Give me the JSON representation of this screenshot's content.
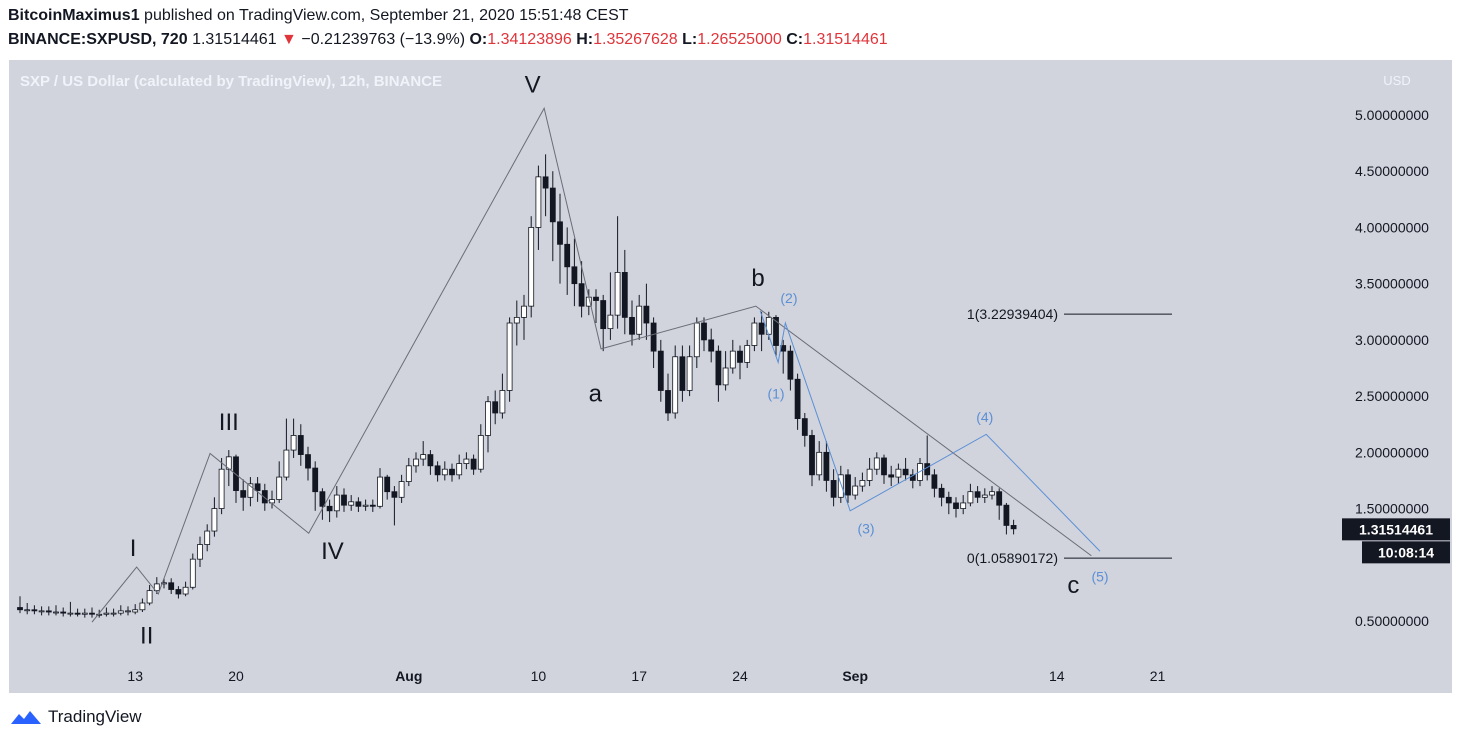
{
  "header": {
    "publisher": "BitcoinMaximus1",
    "published_text": "published on TradingView.com, September 21, 2020 15:51:48 CEST",
    "symbol": "BINANCE:SXPUSD, 720",
    "last": "1.31514461",
    "change_arrow": "▼",
    "change": "−0.21239763 (−13.9%)",
    "o_label": "O:",
    "o": "1.34123896",
    "h_label": "H:",
    "h": "1.35267628",
    "l_label": "L:",
    "l": "1.26525000",
    "c_label": "C:",
    "c": "1.31514461"
  },
  "footer": {
    "brand": "TradingView"
  },
  "chart_data": {
    "type": "candlestick",
    "title": "SXP / US Dollar (calculated by TradingView), 12h, BINANCE",
    "ylabel": "USD",
    "ylim": [
      0.15,
      5.42
    ],
    "y_ticks": [
      "5.00000000",
      "4.50000000",
      "4.00000000",
      "3.50000000",
      "3.00000000",
      "2.50000000",
      "2.00000000",
      "1.50000000",
      "0.50000000"
    ],
    "y_tick_values": [
      5.0,
      4.5,
      4.0,
      3.5,
      3.0,
      2.5,
      2.0,
      1.5,
      0.5
    ],
    "x_ticks": [
      "13",
      "20",
      "Aug",
      "10",
      "17",
      "24",
      "Sep",
      "14",
      "21"
    ],
    "x_tick_index": [
      16,
      30,
      54,
      72,
      86,
      100,
      116,
      144,
      158
    ],
    "last_price_label": "1.31514461",
    "countdown_label": "10:08:14",
    "colors": {
      "up": "#ffffff",
      "down": "#131722",
      "wave": "#6a6d78",
      "subwave": "#5b8fd6",
      "fib": "#131722"
    },
    "candles": [
      [
        0.62,
        0.6,
        0.72,
        0.57
      ],
      [
        0.6,
        0.6,
        0.66,
        0.56
      ],
      [
        0.6,
        0.59,
        0.64,
        0.56
      ],
      [
        0.59,
        0.59,
        0.63,
        0.55
      ],
      [
        0.59,
        0.58,
        0.63,
        0.55
      ],
      [
        0.58,
        0.58,
        0.64,
        0.55
      ],
      [
        0.58,
        0.57,
        0.62,
        0.54
      ],
      [
        0.57,
        0.57,
        0.67,
        0.54
      ],
      [
        0.57,
        0.56,
        0.61,
        0.54
      ],
      [
        0.56,
        0.57,
        0.61,
        0.53
      ],
      [
        0.57,
        0.56,
        0.62,
        0.53
      ],
      [
        0.56,
        0.56,
        0.6,
        0.53
      ],
      [
        0.56,
        0.57,
        0.62,
        0.54
      ],
      [
        0.57,
        0.57,
        0.61,
        0.54
      ],
      [
        0.57,
        0.59,
        0.64,
        0.55
      ],
      [
        0.59,
        0.59,
        0.63,
        0.55
      ],
      [
        0.58,
        0.6,
        0.65,
        0.56
      ],
      [
        0.6,
        0.66,
        0.7,
        0.58
      ],
      [
        0.66,
        0.77,
        0.82,
        0.64
      ],
      [
        0.77,
        0.83,
        0.89,
        0.74
      ],
      [
        0.83,
        0.84,
        0.88,
        0.79
      ],
      [
        0.84,
        0.78,
        0.88,
        0.74
      ],
      [
        0.78,
        0.74,
        0.81,
        0.7
      ],
      [
        0.74,
        0.8,
        0.85,
        0.72
      ],
      [
        0.8,
        1.05,
        1.1,
        0.78
      ],
      [
        1.05,
        1.18,
        1.25,
        0.98
      ],
      [
        1.18,
        1.3,
        1.36,
        1.12
      ],
      [
        1.3,
        1.5,
        1.6,
        1.25
      ],
      [
        1.5,
        1.85,
        1.95,
        1.45
      ],
      [
        1.85,
        1.96,
        2.02,
        1.7
      ],
      [
        1.96,
        1.66,
        1.98,
        1.55
      ],
      [
        1.66,
        1.6,
        1.76,
        1.48
      ],
      [
        1.6,
        1.72,
        1.78,
        1.52
      ],
      [
        1.72,
        1.66,
        1.78,
        1.56
      ],
      [
        1.66,
        1.55,
        1.72,
        1.48
      ],
      [
        1.55,
        1.58,
        1.66,
        1.5
      ],
      [
        1.58,
        1.78,
        1.92,
        1.55
      ],
      [
        1.78,
        2.02,
        2.3,
        1.75
      ],
      [
        2.02,
        2.15,
        2.3,
        1.95
      ],
      [
        2.15,
        1.98,
        2.25,
        1.88
      ],
      [
        1.98,
        1.86,
        2.05,
        1.75
      ],
      [
        1.86,
        1.65,
        1.92,
        1.48
      ],
      [
        1.65,
        1.52,
        1.68,
        1.4
      ],
      [
        1.52,
        1.48,
        1.58,
        1.38
      ],
      [
        1.48,
        1.62,
        1.7,
        1.42
      ],
      [
        1.62,
        1.53,
        1.68,
        1.47
      ],
      [
        1.53,
        1.56,
        1.62,
        1.48
      ],
      [
        1.56,
        1.52,
        1.6,
        1.47
      ],
      [
        1.52,
        1.53,
        1.58,
        1.48
      ],
      [
        1.53,
        1.52,
        1.58,
        1.47
      ],
      [
        1.52,
        1.78,
        1.86,
        1.5
      ],
      [
        1.78,
        1.65,
        1.8,
        1.58
      ],
      [
        1.65,
        1.6,
        1.7,
        1.35
      ],
      [
        1.6,
        1.74,
        1.8,
        1.55
      ],
      [
        1.74,
        1.88,
        1.95,
        1.7
      ],
      [
        1.88,
        1.94,
        2.0,
        1.82
      ],
      [
        1.94,
        1.98,
        2.1,
        1.88
      ],
      [
        1.98,
        1.88,
        2.02,
        1.8
      ],
      [
        1.88,
        1.8,
        1.92,
        1.74
      ],
      [
        1.8,
        1.85,
        1.92,
        1.75
      ],
      [
        1.85,
        1.8,
        1.9,
        1.74
      ],
      [
        1.8,
        1.9,
        1.98,
        1.76
      ],
      [
        1.9,
        1.94,
        2.0,
        1.85
      ],
      [
        1.94,
        1.85,
        1.98,
        1.8
      ],
      [
        1.85,
        2.15,
        2.25,
        1.82
      ],
      [
        2.15,
        2.45,
        2.5,
        2.0
      ],
      [
        2.45,
        2.35,
        2.55,
        2.25
      ],
      [
        2.35,
        2.55,
        2.7,
        2.3
      ],
      [
        2.55,
        3.15,
        3.2,
        2.45
      ],
      [
        3.15,
        3.2,
        3.35,
        2.95
      ],
      [
        3.2,
        3.3,
        3.4,
        3.0
      ],
      [
        3.3,
        4.0,
        4.1,
        3.2
      ],
      [
        4.0,
        4.45,
        4.55,
        3.8
      ],
      [
        4.45,
        4.35,
        4.65,
        4.1
      ],
      [
        4.35,
        4.05,
        4.5,
        3.7
      ],
      [
        4.05,
        3.85,
        4.3,
        3.5
      ],
      [
        3.85,
        3.65,
        4.0,
        3.4
      ],
      [
        3.65,
        3.5,
        3.9,
        3.3
      ],
      [
        3.5,
        3.3,
        3.7,
        3.2
      ],
      [
        3.3,
        3.38,
        3.45,
        3.22
      ],
      [
        3.38,
        3.35,
        3.45,
        3.15
      ],
      [
        3.35,
        3.1,
        3.4,
        2.9
      ],
      [
        3.1,
        3.22,
        3.6,
        3.0
      ],
      [
        3.22,
        3.6,
        4.1,
        3.1
      ],
      [
        3.6,
        3.2,
        3.8,
        3.05
      ],
      [
        3.2,
        3.05,
        3.35,
        2.95
      ],
      [
        3.05,
        3.3,
        3.4,
        3.0
      ],
      [
        3.3,
        3.15,
        3.5,
        3.0
      ],
      [
        3.15,
        2.9,
        3.2,
        2.75
      ],
      [
        2.9,
        2.55,
        3.0,
        2.45
      ],
      [
        2.55,
        2.35,
        2.7,
        2.28
      ],
      [
        2.35,
        2.85,
        2.95,
        2.3
      ],
      [
        2.85,
        2.55,
        2.95,
        2.45
      ],
      [
        2.55,
        2.85,
        2.95,
        2.5
      ],
      [
        2.85,
        3.15,
        3.2,
        2.75
      ],
      [
        3.15,
        3.0,
        3.2,
        2.9
      ],
      [
        3.0,
        2.9,
        3.1,
        2.8
      ],
      [
        2.9,
        2.6,
        2.95,
        2.45
      ],
      [
        2.6,
        2.75,
        2.9,
        2.55
      ],
      [
        2.75,
        2.9,
        3.0,
        2.7
      ],
      [
        2.9,
        2.8,
        2.95,
        2.65
      ],
      [
        2.8,
        2.95,
        3.0,
        2.75
      ],
      [
        2.95,
        3.15,
        3.2,
        2.9
      ],
      [
        3.15,
        3.05,
        3.25,
        2.9
      ],
      [
        3.05,
        3.2,
        3.25,
        3.0
      ],
      [
        3.2,
        2.95,
        3.22,
        2.85
      ],
      [
        2.95,
        2.9,
        3.0,
        2.7
      ],
      [
        2.9,
        2.65,
        2.95,
        2.55
      ],
      [
        2.65,
        2.3,
        2.7,
        2.2
      ],
      [
        2.3,
        2.15,
        2.35,
        2.05
      ],
      [
        2.15,
        1.8,
        2.2,
        1.7
      ],
      [
        1.8,
        2.0,
        2.1,
        1.75
      ],
      [
        2.0,
        1.75,
        2.1,
        1.65
      ],
      [
        1.75,
        1.6,
        1.85,
        1.52
      ],
      [
        1.6,
        1.8,
        1.88,
        1.55
      ],
      [
        1.8,
        1.62,
        1.85,
        1.55
      ],
      [
        1.62,
        1.7,
        1.78,
        1.58
      ],
      [
        1.7,
        1.75,
        1.82,
        1.65
      ],
      [
        1.75,
        1.85,
        1.95,
        1.7
      ],
      [
        1.85,
        1.95,
        2.0,
        1.8
      ],
      [
        1.95,
        1.8,
        1.98,
        1.72
      ],
      [
        1.8,
        1.78,
        1.88,
        1.7
      ],
      [
        1.78,
        1.85,
        1.9,
        1.72
      ],
      [
        1.85,
        1.8,
        1.95,
        1.75
      ],
      [
        1.8,
        1.75,
        1.85,
        1.68
      ],
      [
        1.75,
        1.9,
        1.95,
        1.7
      ],
      [
        1.9,
        1.8,
        2.15,
        1.75
      ],
      [
        1.8,
        1.68,
        1.85,
        1.6
      ],
      [
        1.68,
        1.6,
        1.72,
        1.52
      ],
      [
        1.6,
        1.55,
        1.65,
        1.45
      ],
      [
        1.55,
        1.5,
        1.6,
        1.42
      ],
      [
        1.5,
        1.55,
        1.62,
        1.45
      ],
      [
        1.55,
        1.65,
        1.72,
        1.52
      ],
      [
        1.65,
        1.6,
        1.7,
        1.55
      ],
      [
        1.6,
        1.62,
        1.68,
        1.55
      ],
      [
        1.62,
        1.65,
        1.7,
        1.58
      ],
      [
        1.65,
        1.53,
        1.68,
        1.4
      ],
      [
        1.53,
        1.35,
        1.55,
        1.27
      ],
      [
        1.35,
        1.32,
        1.4,
        1.27
      ]
    ],
    "wave_labels": [
      {
        "text": "I",
        "x": 15.7,
        "y": 1.08,
        "style": "primary"
      },
      {
        "text": "II",
        "x": 17.6,
        "y": 0.3,
        "style": "primary"
      },
      {
        "text": "III",
        "x": 29.0,
        "y": 2.2,
        "style": "primary"
      },
      {
        "text": "IV",
        "x": 43.4,
        "y": 1.05,
        "style": "primary"
      },
      {
        "text": "V",
        "x": 71.2,
        "y": 5.2,
        "style": "primary"
      },
      {
        "text": "a",
        "x": 79.9,
        "y": 2.45,
        "style": "primary"
      },
      {
        "text": "b",
        "x": 102.5,
        "y": 3.48,
        "style": "primary"
      },
      {
        "text": "c",
        "x": 146.3,
        "y": 0.75,
        "style": "primary"
      },
      {
        "text": "(1)",
        "x": 105.0,
        "y": 2.48,
        "style": "sub"
      },
      {
        "text": "(2)",
        "x": 106.8,
        "y": 3.33,
        "style": "sub"
      },
      {
        "text": "(3)",
        "x": 117.5,
        "y": 1.28,
        "style": "sub"
      },
      {
        "text": "(4)",
        "x": 134.0,
        "y": 2.27,
        "style": "sub"
      },
      {
        "text": "(5)",
        "x": 150.0,
        "y": 0.85,
        "style": "sub"
      }
    ],
    "wave_path": [
      [
        10.0,
        0.49
      ],
      [
        16.2,
        0.98
      ],
      [
        19.2,
        0.74
      ],
      [
        26.4,
        1.99
      ],
      [
        40.1,
        1.28
      ],
      [
        72.8,
        5.06
      ],
      [
        80.7,
        2.92
      ],
      [
        102.2,
        3.3
      ],
      [
        148.8,
        1.08
      ]
    ],
    "subwave_path": [
      [
        102.8,
        3.26
      ],
      [
        105.3,
        2.8
      ],
      [
        106.3,
        3.15
      ],
      [
        115.3,
        1.48
      ],
      [
        134.2,
        2.16
      ],
      [
        150.0,
        1.12
      ]
    ],
    "fib_levels": [
      {
        "label": "1(3.22939404)",
        "value": 3.2294
      },
      {
        "label": "0(1.05890172)",
        "value": 1.0589
      }
    ]
  }
}
